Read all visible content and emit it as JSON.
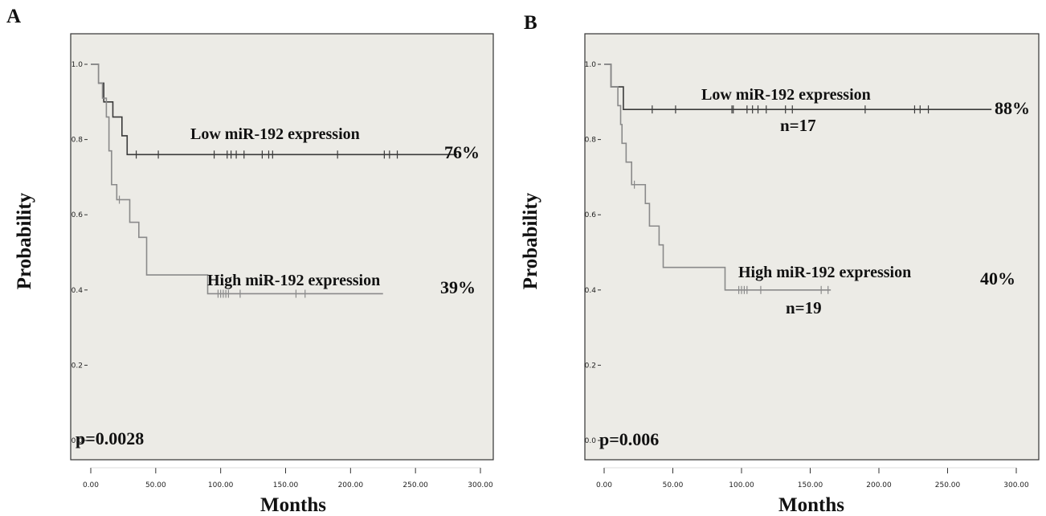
{
  "colors": {
    "plot_background": "#ecebe6",
    "low_series": "#3a3a3a",
    "high_series": "#8a8a8a",
    "axis": "#333333",
    "text": "#111111"
  },
  "chart_data": [
    {
      "panel_label": "A",
      "type": "line",
      "subtype": "kaplan-meier step curve",
      "xlabel": "Months",
      "ylabel": "Probability",
      "xlim": [
        0,
        300
      ],
      "ylim": [
        0,
        1
      ],
      "x_ticks": [
        "0.00",
        "50.00",
        "100.00",
        "150.00",
        "200.00",
        "250.00",
        "300.00"
      ],
      "y_ticks": [
        "0.0",
        "0.2",
        "0.4",
        "0.6",
        "0.8",
        "1.0"
      ],
      "grid": false,
      "legend": "none",
      "p_value": "p=0.0028",
      "series": [
        {
          "name": "Low miR-192 expression",
          "end_label": "76%",
          "color": "#3a3a3a",
          "steps": [
            [
              0,
              1.0
            ],
            [
              6,
              0.95
            ],
            [
              10,
              0.9
            ],
            [
              17,
              0.86
            ],
            [
              24,
              0.81
            ],
            [
              28,
              0.76
            ],
            [
              282,
              0.76
            ]
          ],
          "censored_x": [
            35,
            52,
            95,
            105,
            108,
            112,
            118,
            132,
            137,
            140,
            190,
            226,
            230,
            236
          ]
        },
        {
          "name": "High miR-192 expression",
          "end_label": "39%",
          "color": "#8a8a8a",
          "steps": [
            [
              0,
              1.0
            ],
            [
              6,
              0.95
            ],
            [
              9,
              0.91
            ],
            [
              12,
              0.86
            ],
            [
              14,
              0.77
            ],
            [
              16,
              0.68
            ],
            [
              20,
              0.64
            ],
            [
              30,
              0.58
            ],
            [
              37,
              0.54
            ],
            [
              43,
              0.44
            ],
            [
              90,
              0.39
            ],
            [
              225,
              0.39
            ]
          ],
          "censored_x": [
            22,
            98,
            100,
            102,
            104,
            106,
            115,
            158,
            165
          ]
        }
      ]
    },
    {
      "panel_label": "B",
      "type": "line",
      "subtype": "kaplan-meier step curve",
      "xlabel": "Months",
      "ylabel": "Probability",
      "xlim": [
        0,
        300
      ],
      "ylim": [
        0,
        1
      ],
      "x_ticks": [
        "0.00",
        "50.00",
        "100.00",
        "150.00",
        "200.00",
        "250.00",
        "300.00"
      ],
      "y_ticks": [
        "0.0",
        "0.2",
        "0.4",
        "0.6",
        "0.8",
        "1.0"
      ],
      "grid": false,
      "legend": "none",
      "p_value": "p=0.006",
      "series": [
        {
          "name": "Low miR-192 expression",
          "n_label": "n=17",
          "end_label": "88%",
          "color": "#3a3a3a",
          "steps": [
            [
              0,
              1.0
            ],
            [
              5,
              0.94
            ],
            [
              14,
              0.88
            ],
            [
              282,
              0.88
            ]
          ],
          "censored_x": [
            35,
            52,
            93,
            94,
            104,
            108,
            112,
            118,
            132,
            137,
            190,
            226,
            230,
            236
          ]
        },
        {
          "name": "High miR-192 expression",
          "n_label": "n=19",
          "end_label": "40%",
          "color": "#8a8a8a",
          "steps": [
            [
              0,
              1.0
            ],
            [
              5,
              0.94
            ],
            [
              10,
              0.89
            ],
            [
              12,
              0.84
            ],
            [
              13,
              0.79
            ],
            [
              16,
              0.74
            ],
            [
              20,
              0.68
            ],
            [
              30,
              0.63
            ],
            [
              33,
              0.57
            ],
            [
              40,
              0.52
            ],
            [
              43,
              0.46
            ],
            [
              88,
              0.4
            ],
            [
              165,
              0.4
            ]
          ],
          "censored_x": [
            22,
            98,
            100,
            102,
            104,
            114,
            158,
            163
          ]
        }
      ]
    }
  ]
}
